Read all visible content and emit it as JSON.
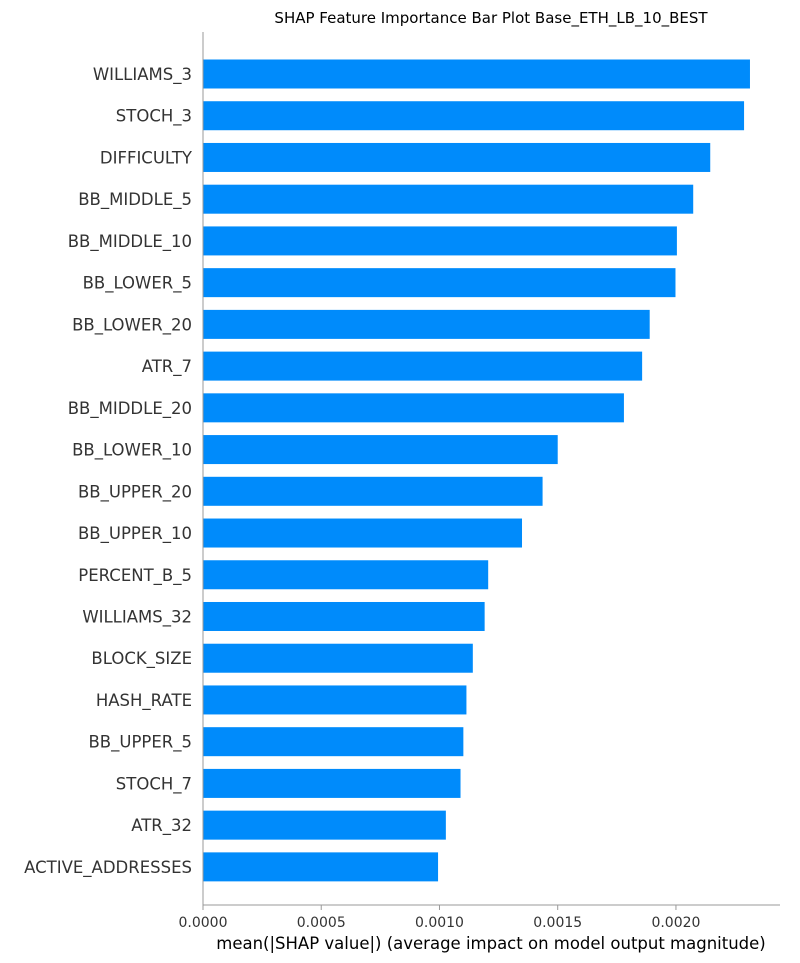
{
  "chart_data": {
    "type": "bar",
    "orientation": "horizontal",
    "title": "SHAP Feature Importance Bar Plot Base_ETH_LB_10_BEST",
    "xlabel": "mean(|SHAP value|) (average impact on model output magnitude)",
    "ylabel": "",
    "xlim": [
      0,
      0.00244
    ],
    "x_ticks": [
      {
        "value": 0,
        "label": "0.0000"
      },
      {
        "value": 0.0005,
        "label": "0.0005"
      },
      {
        "value": 0.001,
        "label": "0.0010"
      },
      {
        "value": 0.0015,
        "label": "0.0015"
      },
      {
        "value": 0.002,
        "label": "0.0020"
      }
    ],
    "categories": [
      "WILLIAMS_3",
      "STOCH_3",
      "DIFFICULTY",
      "BB_MIDDLE_5",
      "BB_MIDDLE_10",
      "BB_LOWER_5",
      "BB_LOWER_20",
      "ATR_7",
      "BB_MIDDLE_20",
      "BB_LOWER_10",
      "BB_UPPER_20",
      "BB_UPPER_10",
      "PERCENT_B_5",
      "WILLIAMS_32",
      "BLOCK_SIZE",
      "HASH_RATE",
      "BB_UPPER_5",
      "STOCH_7",
      "ATR_32",
      "ACTIVE_ADDRESSES"
    ],
    "values": [
      0.002313,
      0.002288,
      0.002145,
      0.002073,
      0.002004,
      0.001998,
      0.001889,
      0.001857,
      0.00178,
      0.0015,
      0.001436,
      0.001349,
      0.001206,
      0.001191,
      0.001141,
      0.001114,
      0.001101,
      0.001089,
      0.001027,
      0.000994
    ],
    "bar_color": "#008bfb",
    "grid": false,
    "legend": "none"
  }
}
